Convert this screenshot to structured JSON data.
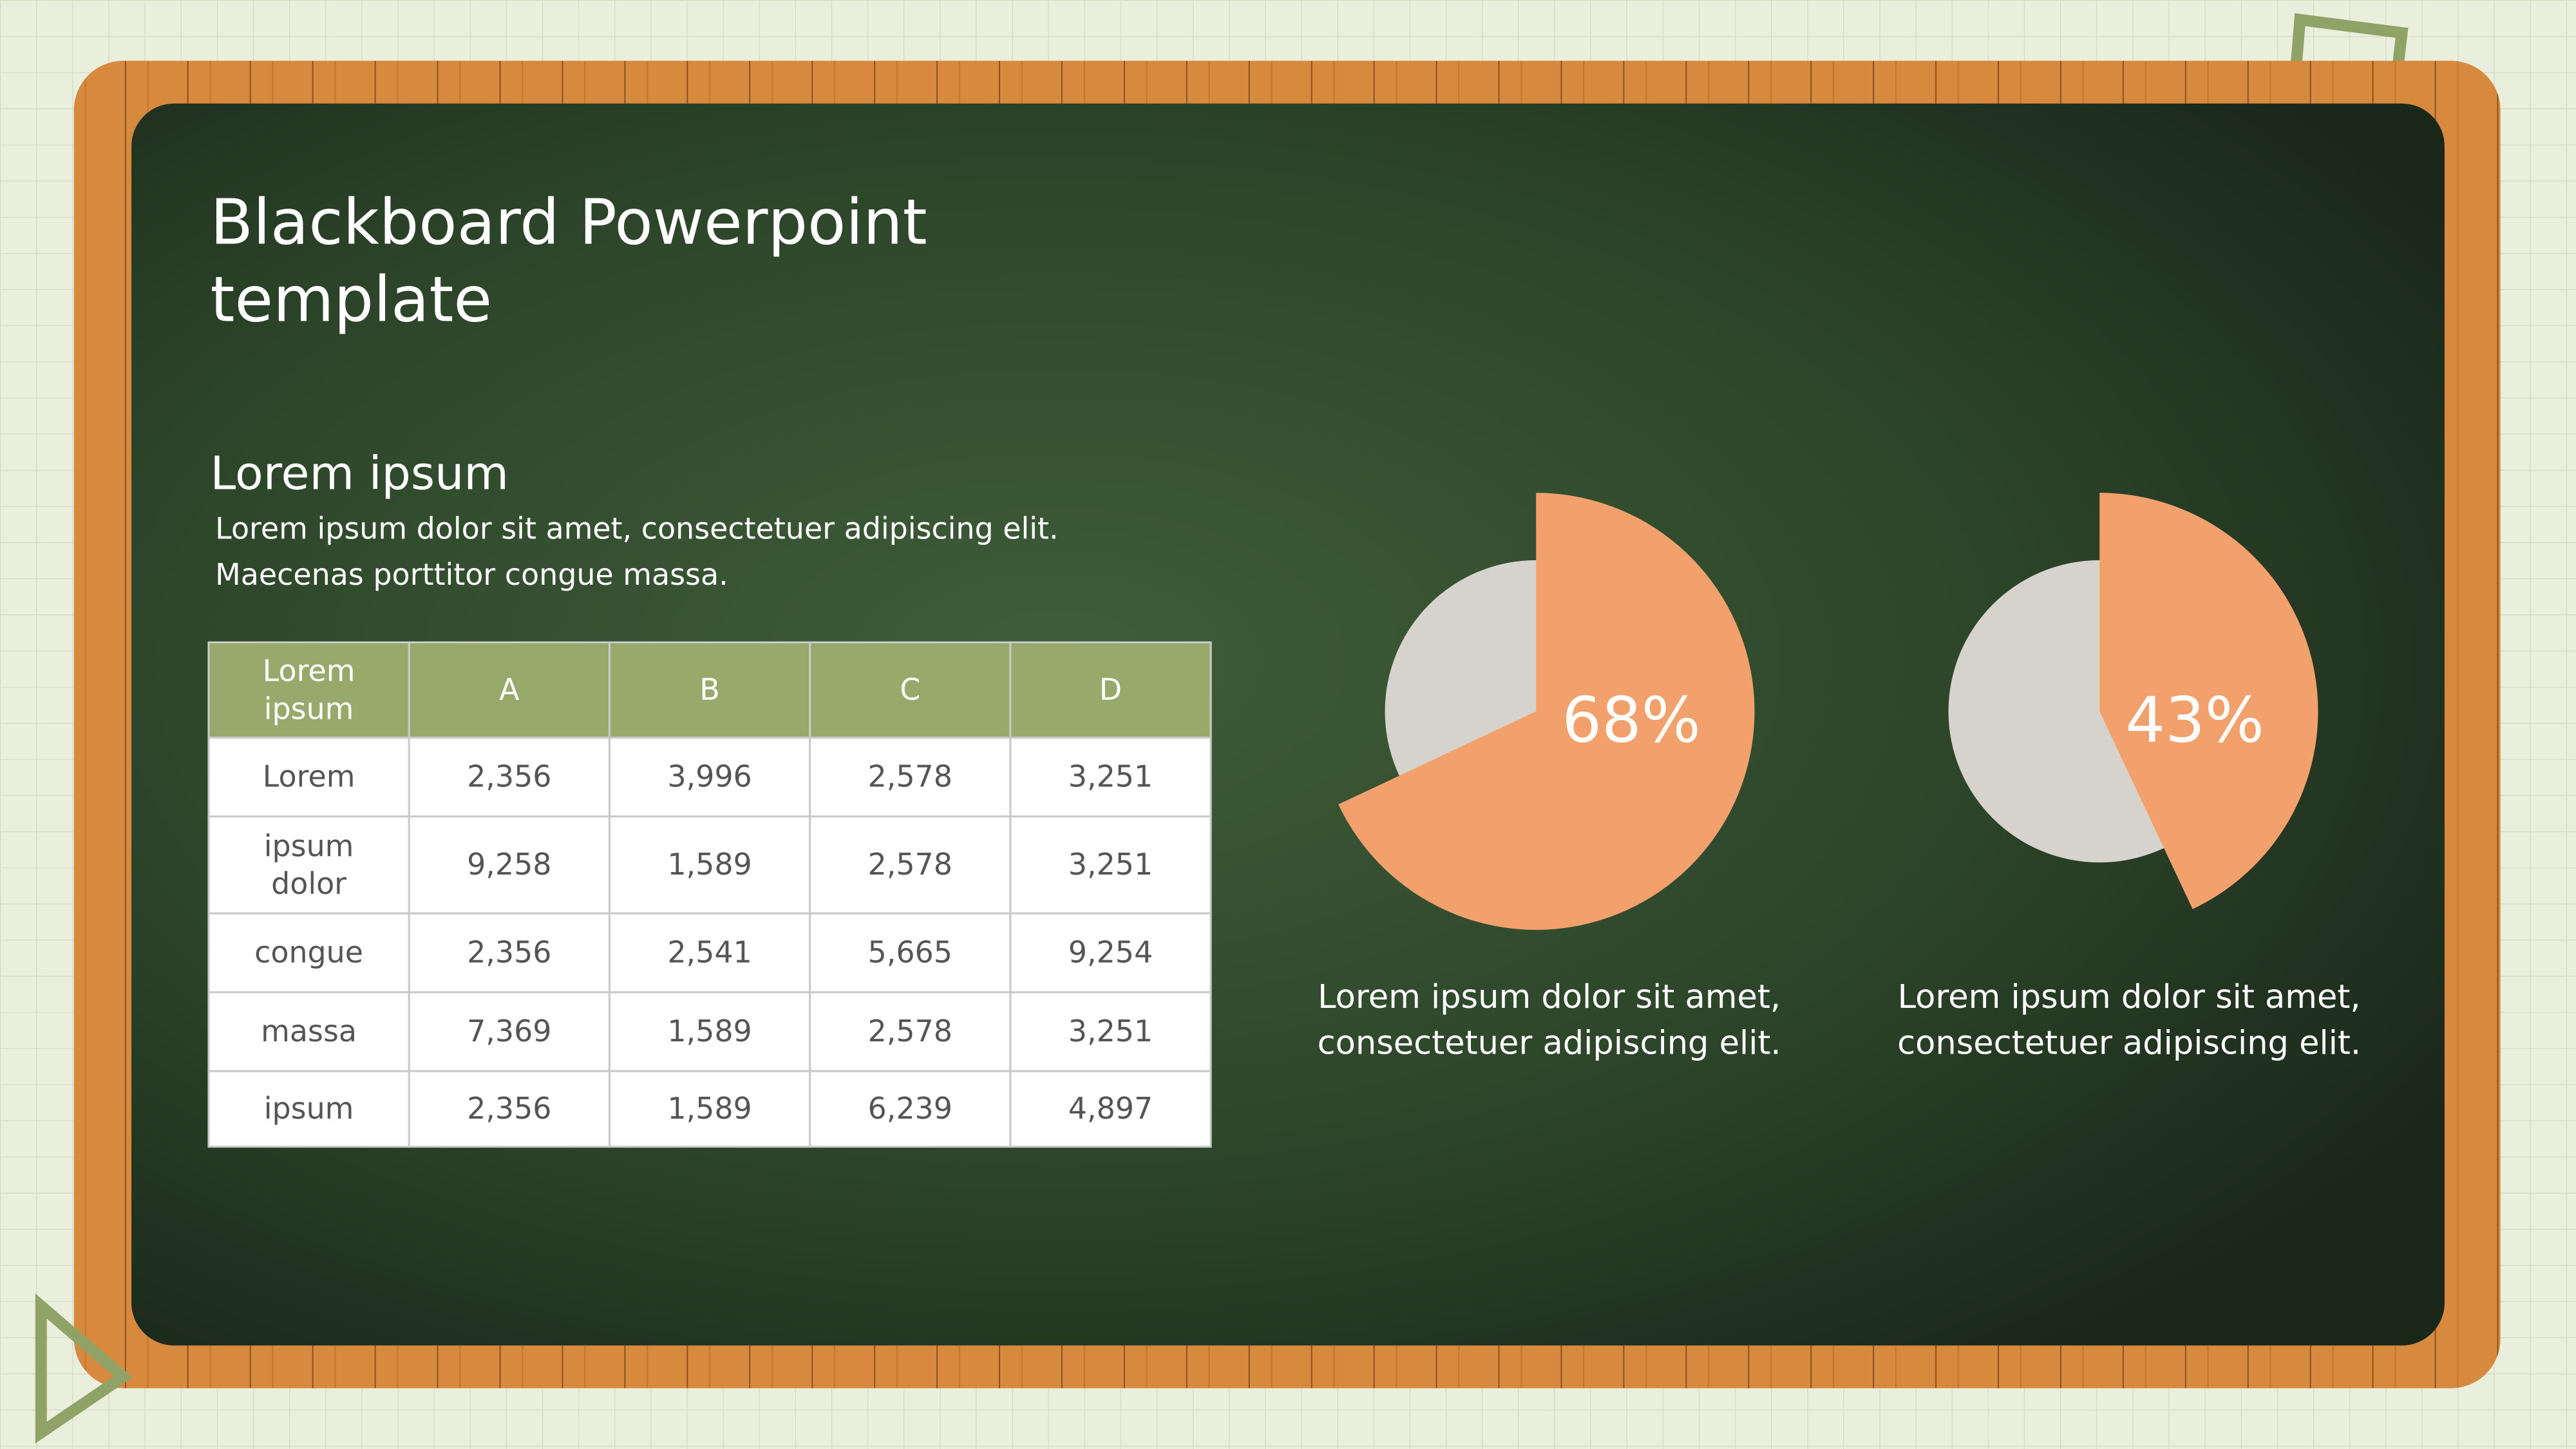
{
  "title": [
    "Blackboard Powerpoint",
    "template"
  ],
  "heading": "Lorem ipsum",
  "body": [
    "Lorem ipsum dolor sit amet, consectetuer adipiscing elit.",
    "Maecenas porttitor congue massa."
  ],
  "table": {
    "header": [
      "Lorem ipsum",
      "A",
      "B",
      "C",
      "D"
    ],
    "rows": [
      [
        "Lorem",
        "2,356",
        "3,996",
        "2,578",
        "3,251"
      ],
      [
        "ipsum dolor",
        "9,258",
        "1,589",
        "2,578",
        "3,251"
      ],
      [
        "congue",
        "2,356",
        "2,541",
        "5,665",
        "9,254"
      ],
      [
        "massa",
        "7,369",
        "1,589",
        "2,578",
        "3,251"
      ],
      [
        "ipsum",
        "2,356",
        "1,589",
        "6,239",
        "4,897"
      ]
    ]
  },
  "chart_data": [
    {
      "type": "pie",
      "values": [
        68
      ],
      "value_labels": [
        "68%"
      ],
      "color": "#f2a16c",
      "caption": [
        "Lorem ipsum dolor sit amet,",
        "consectetuer adipiscing elit."
      ]
    },
    {
      "type": "pie",
      "values": [
        43
      ],
      "value_labels": [
        "43%"
      ],
      "color": "#f2a16c",
      "caption": [
        "Lorem ipsum dolor sit amet,",
        "consectetuer adipiscing elit."
      ]
    }
  ]
}
